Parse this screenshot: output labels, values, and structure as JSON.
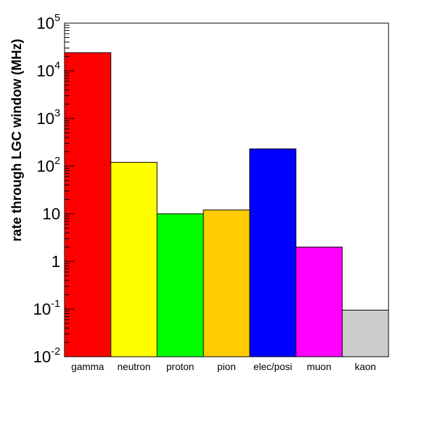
{
  "chart_data": {
    "type": "bar",
    "title": "",
    "xlabel": "",
    "ylabel": "rate through LGC window (MHz)",
    "yscale": "log",
    "ylim": [
      0.01,
      100000
    ],
    "grid": false,
    "legend": "none",
    "categories": [
      "gamma",
      "neutron",
      "proton",
      "pion",
      "elec/posi",
      "muon",
      "kaon"
    ],
    "values": [
      24000,
      120,
      10,
      12,
      230,
      2,
      0.095
    ],
    "colors": [
      "#ff0000",
      "#ffff00",
      "#00ff00",
      "#ffcc00",
      "#0000ff",
      "#ff00ff",
      "#cccccc"
    ],
    "y_ticks": [
      {
        "base": "10",
        "exp": "-2"
      },
      {
        "base": "10",
        "exp": "-1"
      },
      {
        "base": "1",
        "exp": ""
      },
      {
        "base": "10",
        "exp": ""
      },
      {
        "base": "10",
        "exp": "2"
      },
      {
        "base": "10",
        "exp": "3"
      },
      {
        "base": "10",
        "exp": "4"
      },
      {
        "base": "10",
        "exp": "5"
      }
    ]
  }
}
